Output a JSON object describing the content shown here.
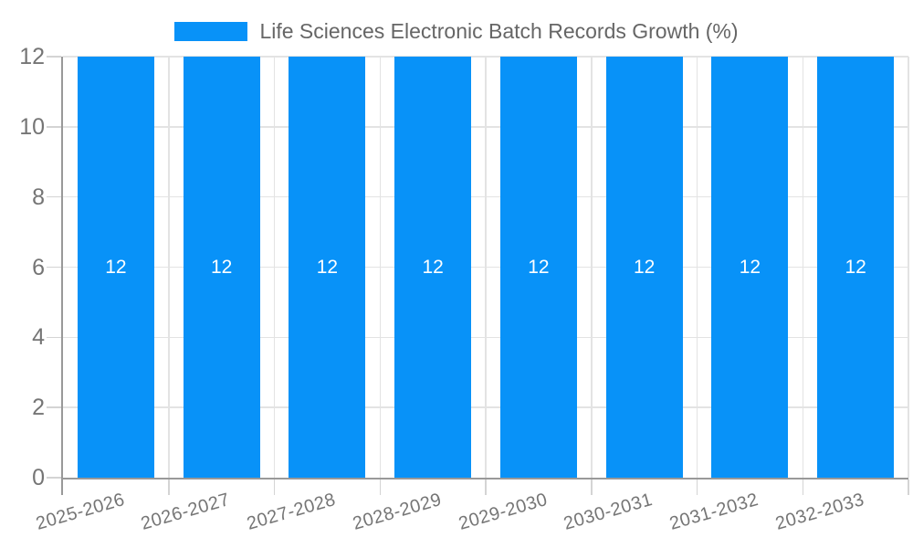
{
  "chart_data": {
    "type": "bar",
    "title": "Life Sciences Electronic Batch Records Growth (%)",
    "legend_position": "top",
    "categories": [
      "2025-2026",
      "2026-2027",
      "2027-2028",
      "2028-2029",
      "2029-2030",
      "2030-2031",
      "2031-2032",
      "2032-2033"
    ],
    "series": [
      {
        "name": "Life Sciences Electronic Batch Records Growth (%)",
        "values": [
          12,
          12,
          12,
          12,
          12,
          12,
          12,
          12
        ]
      }
    ],
    "bar_value_labels": [
      "12",
      "12",
      "12",
      "12",
      "12",
      "12",
      "12",
      "12"
    ],
    "xlabel": "",
    "ylabel": "",
    "ylim": [
      0,
      12
    ],
    "yticks": [
      0,
      2,
      4,
      6,
      8,
      10,
      12
    ],
    "x_tick_rotation_deg": -16,
    "grid": true,
    "colors": {
      "bar": "#0892f8",
      "bar_label": "#ffffff",
      "title": "#666666",
      "axis_tick_label": "#757575",
      "gridline": "#e3e3e3",
      "tick_mark": "#d4d4d4",
      "axis_line": "#999999",
      "background": "#ffffff"
    }
  }
}
